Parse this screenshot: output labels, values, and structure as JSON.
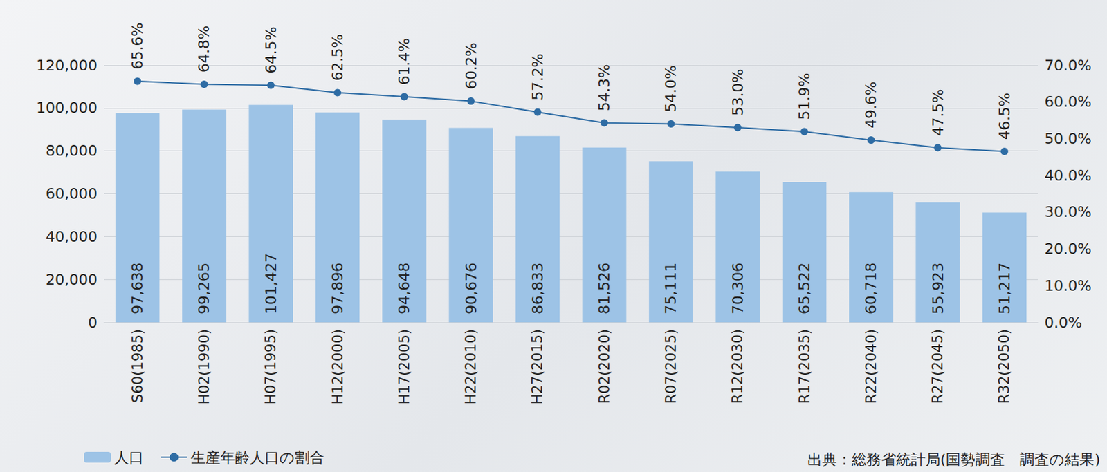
{
  "chart_data": {
    "type": "bar",
    "categories": [
      "S60(1985)",
      "H02(1990)",
      "H07(1995)",
      "H12(2000)",
      "H17(2005)",
      "H22(2010)",
      "H27(2015)",
      "R02(2020)",
      "R07(2025)",
      "R12(2030)",
      "R17(2035)",
      "R22(2040)",
      "R27(2045)",
      "R32(2050)"
    ],
    "series": [
      {
        "name": "人口",
        "type": "bar",
        "color": "#9dc3e6",
        "values": [
          97638,
          99265,
          101427,
          97896,
          94648,
          90676,
          86833,
          81526,
          75111,
          70306,
          65522,
          60718,
          55923,
          51217
        ],
        "value_labels": [
          "97,638",
          "99,265",
          "101,427",
          "97,896",
          "94,648",
          "90,676",
          "86,833",
          "81,526",
          "75,111",
          "70,306",
          "65,522",
          "60,718",
          "55,923",
          "51,217"
        ]
      },
      {
        "name": "生産年齢人口の割合",
        "type": "line",
        "axis": "y2",
        "color": "#2e6ca4",
        "marker": "circle",
        "values": [
          65.6,
          64.8,
          64.5,
          62.5,
          61.4,
          60.2,
          57.2,
          54.3,
          54.0,
          53.0,
          51.9,
          49.6,
          47.5,
          46.5
        ],
        "value_labels": [
          "65.6%",
          "64.8%",
          "64.5%",
          "62.5%",
          "61.4%",
          "60.2%",
          "57.2%",
          "54.3%",
          "54.0%",
          "53.0%",
          "51.9%",
          "49.6%",
          "47.5%",
          "46.5%"
        ]
      }
    ],
    "ylim": [
      0,
      120000
    ],
    "yticks": [
      {
        "value": 0,
        "label": "0"
      },
      {
        "value": 20000,
        "label": "20,000"
      },
      {
        "value": 40000,
        "label": "40,000"
      },
      {
        "value": 60000,
        "label": "60,000"
      },
      {
        "value": 80000,
        "label": "80,000"
      },
      {
        "value": 100000,
        "label": "100,000"
      },
      {
        "value": 120000,
        "label": "120,000"
      }
    ],
    "y2lim": [
      0,
      70
    ],
    "y2ticks": [
      {
        "value": 0,
        "label": "0.0%"
      },
      {
        "value": 10,
        "label": "10.0%"
      },
      {
        "value": 20,
        "label": "20.0%"
      },
      {
        "value": 30,
        "label": "30.0%"
      },
      {
        "value": 40,
        "label": "40.0%"
      },
      {
        "value": 50,
        "label": "50.0%"
      },
      {
        "value": 60,
        "label": "60.0%"
      },
      {
        "value": 70,
        "label": "70.0%"
      }
    ],
    "annotations": [
      "出典：総務省統計局(国勢調査　調査の結果)"
    ],
    "grid": true,
    "legend": "bottom-left",
    "data_labels": true
  }
}
